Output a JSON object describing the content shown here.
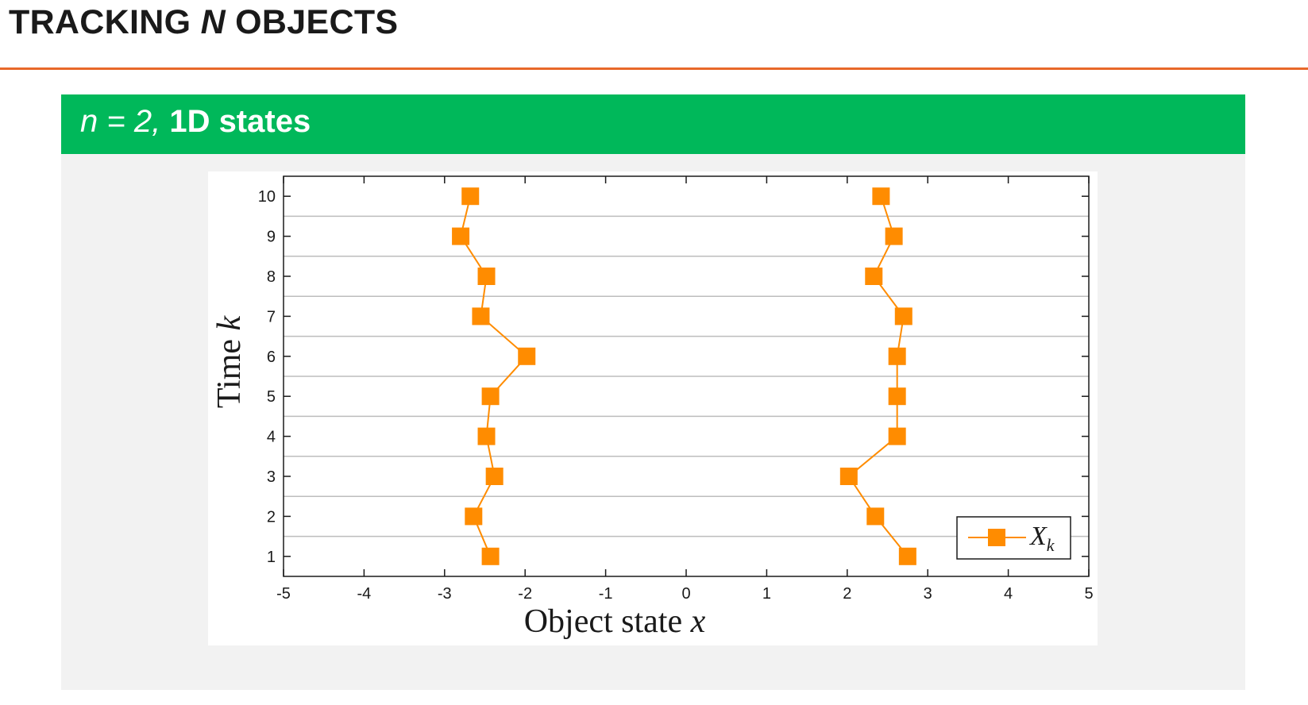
{
  "slide": {
    "title_plain": "TRACKING ",
    "title_italic": "N",
    "title_rest": " OBJECTS"
  },
  "block": {
    "math": "n = 2,",
    "text": " 1D states"
  },
  "colors": {
    "accent_rule": "#e8682a",
    "block_header": "#00b85a",
    "marker": "#ff8c00",
    "grid": "#bdbdbd"
  },
  "chart_data": {
    "type": "line",
    "xlabel_text": "Object state ",
    "xlabel_var": "x",
    "ylabel_text": "Time ",
    "ylabel_var": "k",
    "xlim": [
      -5,
      5
    ],
    "ylim": [
      0.5,
      10.5
    ],
    "xticks": [
      -5,
      -4,
      -3,
      -2,
      -1,
      0,
      1,
      2,
      3,
      4,
      5
    ],
    "yticks": [
      1,
      2,
      3,
      4,
      5,
      6,
      7,
      8,
      9,
      10
    ],
    "grid_lines_y": [
      1.5,
      2.5,
      3.5,
      4.5,
      5.5,
      6.5,
      7.5,
      8.5,
      9.5
    ],
    "legend_position": "bottom-right",
    "series": [
      {
        "name": "X",
        "name_sub": "k",
        "marker": "square",
        "traces": [
          {
            "x": [
              -2.43,
              -2.64,
              -2.38,
              -2.48,
              -2.43,
              -1.98,
              -2.55,
              -2.48,
              -2.8,
              -2.68
            ],
            "y": [
              1,
              2,
              3,
              4,
              5,
              6,
              7,
              8,
              9,
              10
            ]
          },
          {
            "x": [
              2.75,
              2.35,
              2.02,
              2.62,
              2.62,
              2.62,
              2.7,
              2.33,
              2.58,
              2.42
            ],
            "y": [
              1,
              2,
              3,
              4,
              5,
              6,
              7,
              8,
              9,
              10
            ]
          }
        ]
      }
    ]
  }
}
